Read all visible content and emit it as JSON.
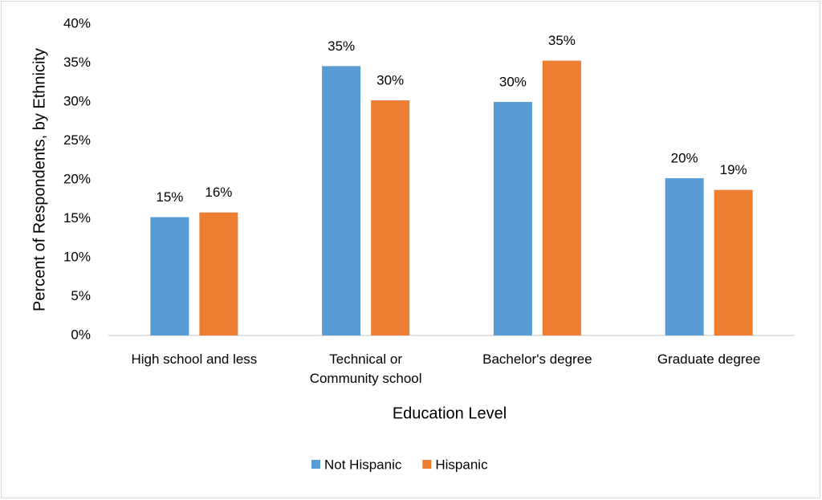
{
  "chart_data": {
    "type": "bar",
    "x_label": "Education Level",
    "y_label": "Percent of Respondents, by Ethnicity",
    "categories": [
      "High school and less",
      "Technical or Community school",
      "Bachelor's degree",
      "Graduate degree"
    ],
    "series": [
      {
        "name": "Not Hispanic",
        "color": "#5b9bd5",
        "values": [
          15.2,
          34.6,
          30.0,
          20.2
        ],
        "value_labels": [
          "15%",
          "35%",
          "30%",
          "20%"
        ]
      },
      {
        "name": "Hispanic",
        "color": "#ed7d31",
        "values": [
          15.8,
          30.2,
          35.3,
          18.7
        ],
        "value_labels": [
          "16%",
          "30%",
          "35%",
          "19%"
        ]
      }
    ],
    "ylim": [
      0,
      40
    ],
    "yticks": [
      {
        "value": 0,
        "label": "0%"
      },
      {
        "value": 5,
        "label": "5%"
      },
      {
        "value": 10,
        "label": "10%"
      },
      {
        "value": 15,
        "label": "15%"
      },
      {
        "value": 20,
        "label": "20%"
      },
      {
        "value": 25,
        "label": "25%"
      },
      {
        "value": 30,
        "label": "30%"
      },
      {
        "value": 35,
        "label": "35%"
      },
      {
        "value": 40,
        "label": "40%"
      }
    ],
    "grid": false,
    "legend": "bottom"
  }
}
